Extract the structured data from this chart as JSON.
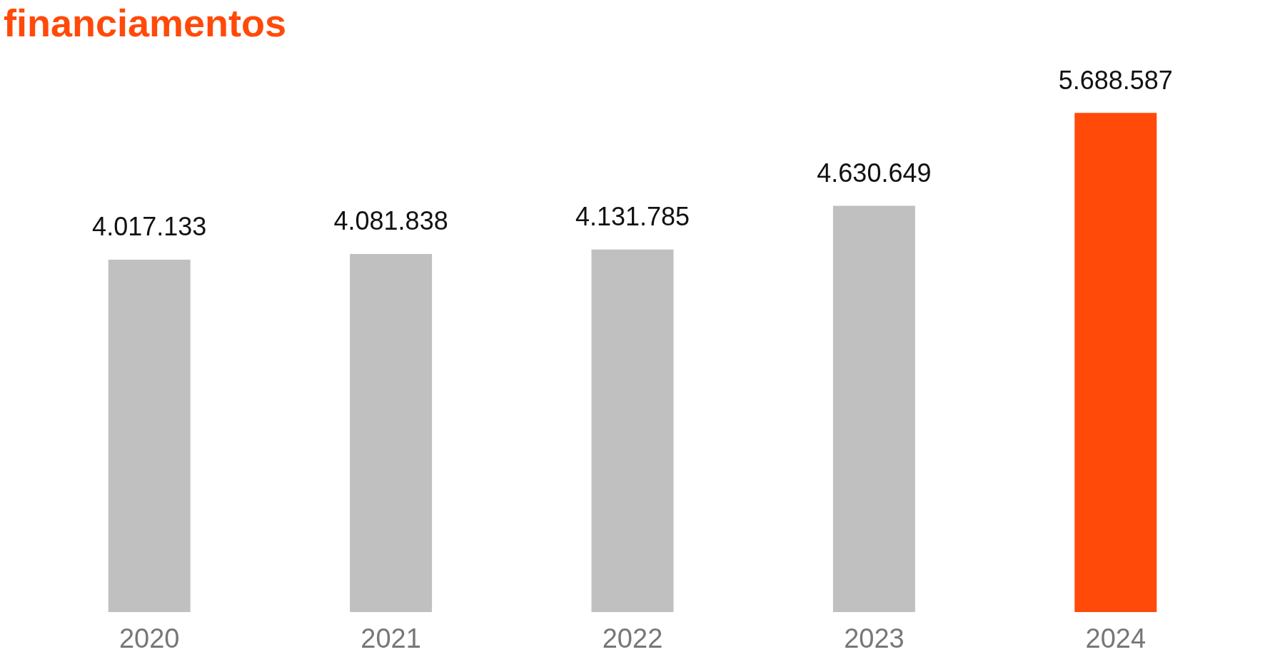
{
  "chart_data": {
    "type": "bar",
    "title": "financiamentos",
    "categories": [
      "2020",
      "2021",
      "2022",
      "2023",
      "2024"
    ],
    "values": [
      4017133,
      4081838,
      4131785,
      4630649,
      5688587
    ],
    "value_labels": [
      "4.017.133",
      "4.081.838",
      "4.131.785",
      "4.630.649",
      "5.688.587"
    ],
    "colors": [
      "#c0c0c0",
      "#c0c0c0",
      "#c0c0c0",
      "#c0c0c0",
      "#ff4a0a"
    ]
  }
}
